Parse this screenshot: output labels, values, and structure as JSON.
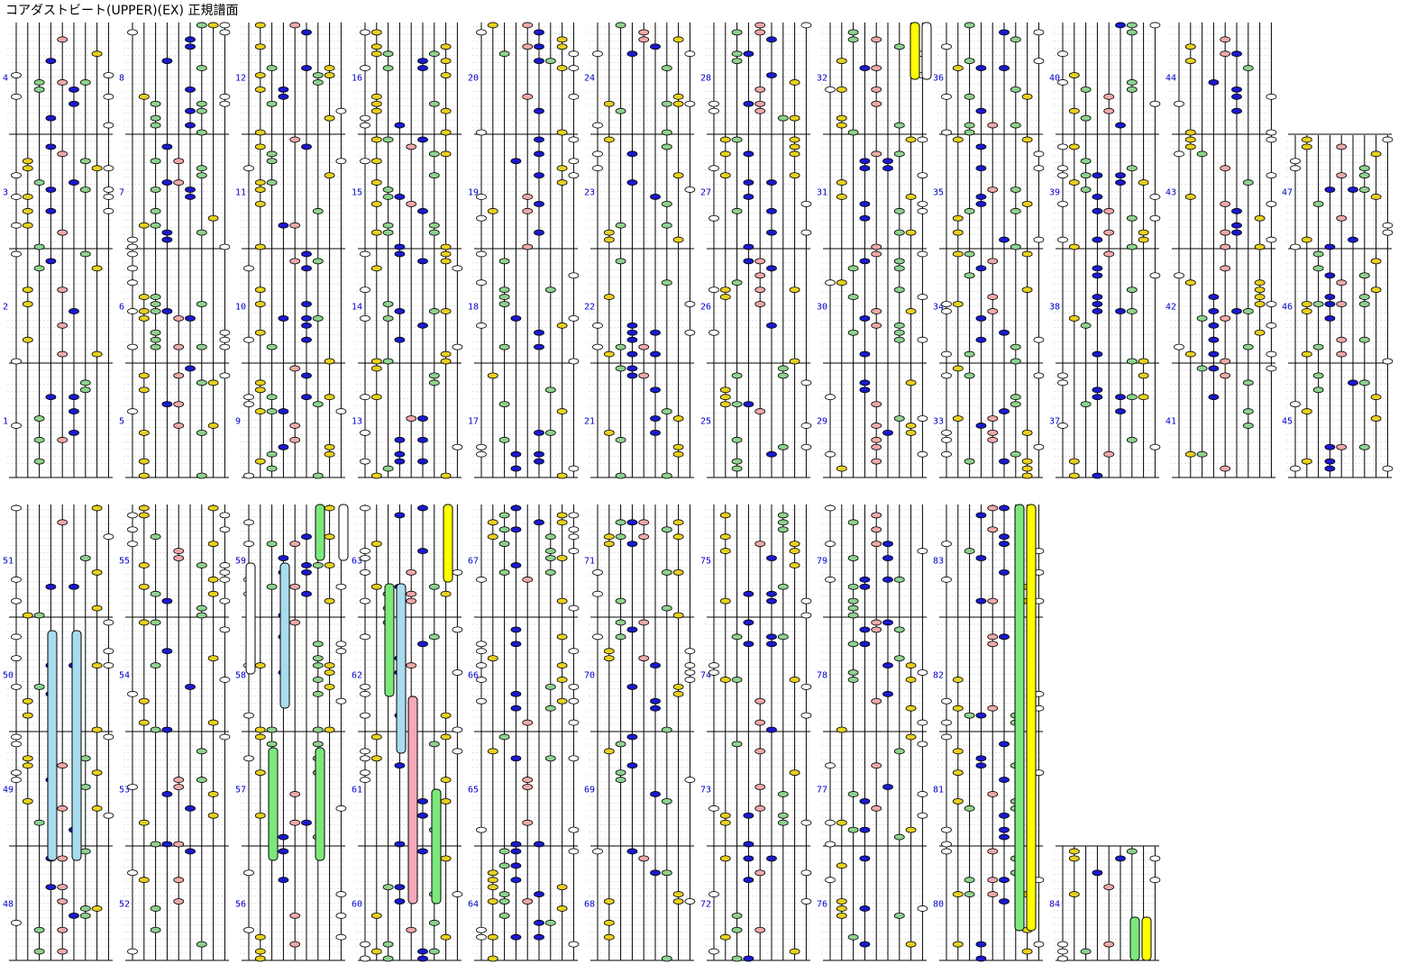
{
  "page": {
    "title": "コアダストビート(UPPER)(EX) 正規譜面"
  },
  "palette": {
    "background": "#ffffff",
    "lane_line": "#000000",
    "beat_line": "#888888",
    "sub_line": "#c8c8c8",
    "measure_number": "#0000cc",
    "note_white": "#ffffff",
    "note_yellow": "#e8d020",
    "note_green": "#8ed28e",
    "note_blue": "#1a1acc",
    "note_pink": "#f0a8a8",
    "note_lightblue": "#9fd8ea",
    "long_green": "#7ce87c",
    "long_yellow": "#ffff00",
    "long_blue": "#a8dcee",
    "long_pink": "#f4a8b8",
    "long_white": "#ffffff"
  },
  "chart_data": {
    "type": "other",
    "lanes": [
      "white",
      "yellow",
      "green",
      "blue",
      "pink",
      "blue",
      "green",
      "yellow",
      "white"
    ],
    "measure_numbers": [
      "1",
      "2",
      "3",
      "4",
      "5",
      "6",
      "7",
      "8",
      "9",
      "10",
      "11",
      "12",
      "13",
      "14",
      "15",
      "16",
      "17",
      "18",
      "19",
      "20",
      "21",
      "22",
      "23",
      "24",
      "25",
      "26",
      "27",
      "28",
      "29",
      "30",
      "31",
      "32",
      "33",
      "34",
      "35",
      "36",
      "37",
      "38",
      "39",
      "40",
      "41",
      "42",
      "43",
      "44",
      "45",
      "46",
      "47",
      "48",
      "49",
      "50",
      "51",
      "52",
      "53",
      "54",
      "55",
      "56",
      "57",
      "58",
      "59",
      "60",
      "61",
      "62",
      "63",
      "64",
      "65",
      "66",
      "67",
      "68",
      "69",
      "70",
      "71",
      "72",
      "73",
      "74",
      "75",
      "76",
      "77",
      "78",
      "79",
      "80",
      "81",
      "82",
      "83",
      "84"
    ]
  }
}
